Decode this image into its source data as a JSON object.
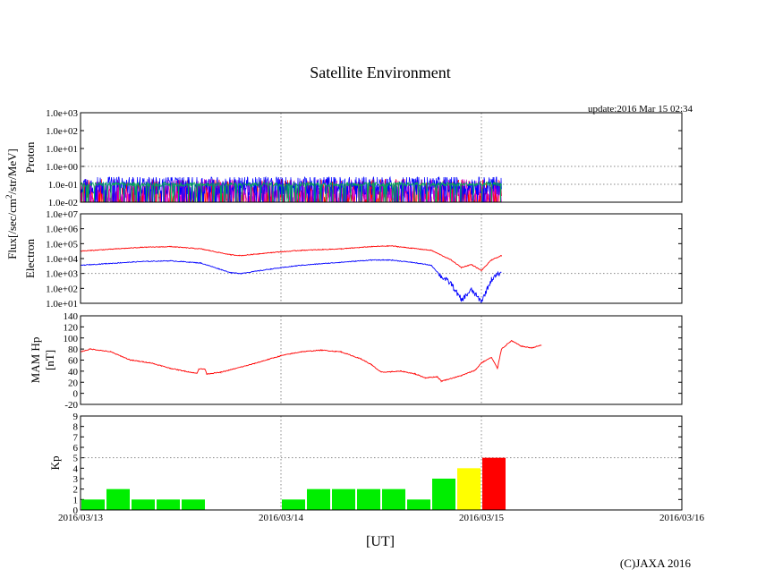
{
  "figure": {
    "title": "Satellite Environment",
    "update": "update:2016 Mar 15 02:34",
    "credit": "(C)JAXA 2016",
    "x_label": "[UT]",
    "x_ticks": [
      "2016/03/13",
      "2016/03/14",
      "2016/03/15",
      "2016/03/16"
    ],
    "shared_y_label": "Flux[/sec/cm²/str/MeV]"
  },
  "chart_data": [
    {
      "id": "proton",
      "type": "line",
      "ylabel": "Proton",
      "yscale": "log",
      "ylim_exp": [
        -2,
        3
      ],
      "y_ticks": [
        "1.0e-02",
        "1.0e-01",
        "1.0e+00",
        "1.0e+01",
        "1.0e+02",
        "1.0e+03"
      ],
      "x_range_days": [
        0,
        3
      ],
      "data_end_day": 2.1,
      "series": [
        {
          "name": "proton-red",
          "color": "#ff0000",
          "center_exp": -1.6,
          "noise": 0.9,
          "floor_exp": -2.0
        },
        {
          "name": "proton-magenta",
          "color": "#cc00cc",
          "center_exp": -1.4,
          "noise": 0.7,
          "floor_exp": -2.0
        },
        {
          "name": "proton-blue",
          "color": "#0000ff",
          "center_exp": -1.05,
          "noise": 0.55,
          "floor_exp": -2.0
        },
        {
          "name": "proton-green",
          "color": "#00aa55",
          "center_exp": -1.0,
          "noise": 0.12,
          "floor_exp": -2.0
        }
      ]
    },
    {
      "id": "electron",
      "type": "line",
      "ylabel": "Electron",
      "yscale": "log",
      "ylim_exp": [
        1,
        7
      ],
      "y_ticks": [
        "1.0e+01",
        "1.0e+02",
        "1.0e+03",
        "1.0e+04",
        "1.0e+05",
        "1.0e+06",
        "1.0e+07"
      ],
      "x_range_days": [
        0,
        3
      ],
      "series": [
        {
          "name": "electron-red",
          "color": "#ff0000",
          "points": [
            [
              0,
              4.5
            ],
            [
              0.3,
              4.75
            ],
            [
              0.45,
              4.8
            ],
            [
              0.6,
              4.65
            ],
            [
              0.75,
              4.25
            ],
            [
              0.8,
              4.2
            ],
            [
              0.95,
              4.4
            ],
            [
              1.1,
              4.55
            ],
            [
              1.3,
              4.65
            ],
            [
              1.45,
              4.8
            ],
            [
              1.55,
              4.85
            ],
            [
              1.65,
              4.7
            ],
            [
              1.75,
              4.55
            ],
            [
              1.85,
              3.9
            ],
            [
              1.9,
              3.4
            ],
            [
              1.95,
              3.6
            ],
            [
              2.0,
              3.2
            ],
            [
              2.05,
              3.9
            ],
            [
              2.1,
              4.2
            ],
            [
              2.1,
              4.2
            ]
          ]
        },
        {
          "name": "electron-blue",
          "color": "#0000ff",
          "points": [
            [
              0,
              3.55
            ],
            [
              0.3,
              3.8
            ],
            [
              0.45,
              3.85
            ],
            [
              0.6,
              3.7
            ],
            [
              0.75,
              3.05
            ],
            [
              0.8,
              3.0
            ],
            [
              0.95,
              3.3
            ],
            [
              1.1,
              3.55
            ],
            [
              1.3,
              3.75
            ],
            [
              1.45,
              3.9
            ],
            [
              1.55,
              3.9
            ],
            [
              1.65,
              3.75
            ],
            [
              1.75,
              3.55
            ],
            [
              1.8,
              2.8
            ],
            [
              1.85,
              2.3
            ],
            [
              1.9,
              1.2
            ],
            [
              1.95,
              1.9
            ],
            [
              2.0,
              1.1
            ],
            [
              2.05,
              2.6
            ],
            [
              2.1,
              3.1
            ]
          ]
        }
      ]
    },
    {
      "id": "mam_hp",
      "type": "line",
      "ylabel": "MAM Hp",
      "ylabel2": "[nT]",
      "ylim": [
        -20,
        140
      ],
      "y_ticks": [
        "-20",
        "0",
        "20",
        "40",
        "60",
        "80",
        "100",
        "120",
        "140"
      ],
      "x_range_days": [
        0,
        3
      ],
      "series": [
        {
          "name": "hp-red",
          "color": "#ff0000",
          "points": [
            [
              0,
              75
            ],
            [
              0.05,
              80
            ],
            [
              0.15,
              75
            ],
            [
              0.25,
              60
            ],
            [
              0.35,
              55
            ],
            [
              0.45,
              45
            ],
            [
              0.55,
              38
            ],
            [
              0.58,
              36
            ],
            [
              0.59,
              44
            ],
            [
              0.62,
              44
            ],
            [
              0.63,
              35
            ],
            [
              0.7,
              38
            ],
            [
              0.85,
              52
            ],
            [
              1.0,
              68
            ],
            [
              1.1,
              75
            ],
            [
              1.2,
              78
            ],
            [
              1.3,
              75
            ],
            [
              1.4,
              62
            ],
            [
              1.45,
              52
            ],
            [
              1.5,
              38
            ],
            [
              1.6,
              40
            ],
            [
              1.67,
              35
            ],
            [
              1.72,
              28
            ],
            [
              1.78,
              30
            ],
            [
              1.8,
              22
            ],
            [
              1.9,
              32
            ],
            [
              1.97,
              42
            ],
            [
              2.0,
              55
            ],
            [
              2.05,
              65
            ],
            [
              2.08,
              45
            ],
            [
              2.1,
              80
            ],
            [
              2.15,
              95
            ],
            [
              2.2,
              85
            ],
            [
              2.25,
              82
            ],
            [
              2.3,
              87
            ]
          ]
        }
      ]
    },
    {
      "id": "kp",
      "type": "bar",
      "ylabel": "Kp",
      "ylim": [
        0,
        9
      ],
      "y_ticks": [
        "0",
        "1",
        "2",
        "3",
        "4",
        "5",
        "6",
        "7",
        "8",
        "9"
      ],
      "x_range_days": [
        0,
        3
      ],
      "bar_width_days": 0.125,
      "bars": [
        {
          "x": 0.0,
          "value": 1,
          "color": "#00ee00"
        },
        {
          "x": 0.125,
          "value": 2,
          "color": "#00ee00"
        },
        {
          "x": 0.25,
          "value": 1,
          "color": "#00ee00"
        },
        {
          "x": 0.375,
          "value": 1,
          "color": "#00ee00"
        },
        {
          "x": 0.5,
          "value": 1,
          "color": "#00ee00"
        },
        {
          "x": 1.0,
          "value": 1,
          "color": "#00ee00"
        },
        {
          "x": 1.125,
          "value": 2,
          "color": "#00ee00"
        },
        {
          "x": 1.25,
          "value": 2,
          "color": "#00ee00"
        },
        {
          "x": 1.375,
          "value": 2,
          "color": "#00ee00"
        },
        {
          "x": 1.5,
          "value": 2,
          "color": "#00ee00"
        },
        {
          "x": 1.625,
          "value": 1,
          "color": "#00ee00"
        },
        {
          "x": 1.75,
          "value": 3,
          "color": "#00ee00"
        },
        {
          "x": 1.875,
          "value": 4,
          "color": "#ffff00"
        },
        {
          "x": 2.0,
          "value": 5,
          "color": "#ff0000"
        }
      ]
    }
  ]
}
